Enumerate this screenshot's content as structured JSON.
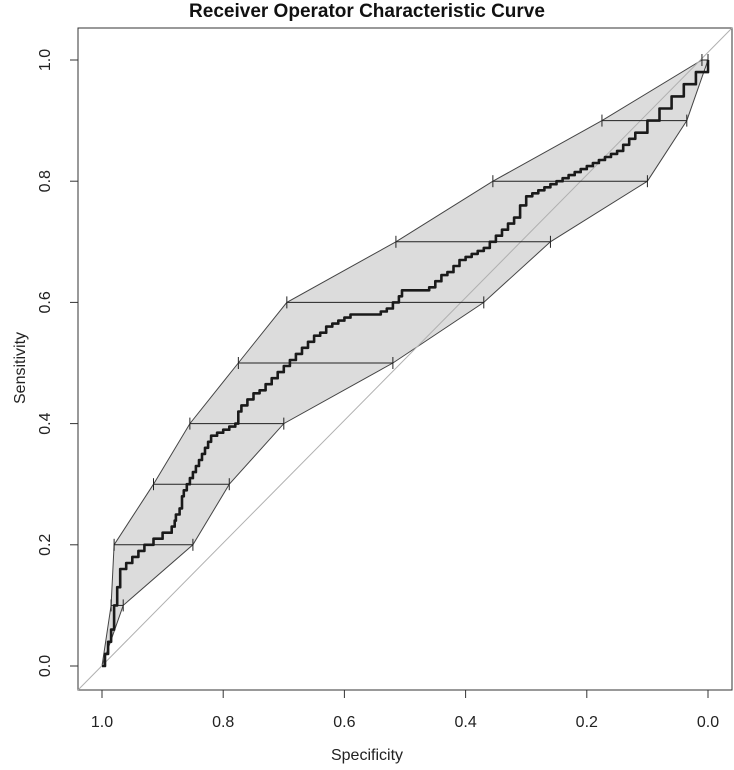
{
  "chart_data": {
    "type": "line",
    "title": "Receiver Operator Characteristic Curve",
    "xlabel": "Specificity",
    "ylabel": "Sensitivity",
    "xlim": [
      1.0,
      0.0
    ],
    "ylim": [
      0.0,
      1.0
    ],
    "x_reversed": true,
    "xticks": [
      "1.0",
      "0.8",
      "0.6",
      "0.4",
      "0.2",
      "0.0"
    ],
    "xtick_values": [
      1.0,
      0.8,
      0.6,
      0.4,
      0.2,
      0.0
    ],
    "yticks": [
      "0.0",
      "0.2",
      "0.4",
      "0.6",
      "0.8",
      "1.0"
    ],
    "ytick_values": [
      0.0,
      0.2,
      0.4,
      0.6,
      0.8,
      1.0
    ],
    "grid": false,
    "diagonal_reference": [
      [
        1.0,
        0.0
      ],
      [
        0.0,
        1.0
      ]
    ],
    "roc_curve": {
      "specificity": [
        1.0,
        0.995,
        0.99,
        0.985,
        0.98,
        0.975,
        0.97,
        0.96,
        0.95,
        0.945,
        0.94,
        0.93,
        0.925,
        0.92,
        0.915,
        0.9,
        0.895,
        0.89,
        0.885,
        0.88,
        0.878,
        0.872,
        0.868,
        0.865,
        0.86,
        0.855,
        0.85,
        0.845,
        0.84,
        0.835,
        0.83,
        0.825,
        0.82,
        0.81,
        0.8,
        0.79,
        0.78,
        0.775,
        0.775,
        0.77,
        0.76,
        0.75,
        0.74,
        0.73,
        0.72,
        0.71,
        0.7,
        0.69,
        0.68,
        0.67,
        0.66,
        0.65,
        0.64,
        0.63,
        0.62,
        0.61,
        0.6,
        0.59,
        0.58,
        0.57,
        0.56,
        0.55,
        0.54,
        0.53,
        0.52,
        0.51,
        0.505,
        0.5,
        0.49,
        0.48,
        0.47,
        0.46,
        0.45,
        0.44,
        0.43,
        0.42,
        0.41,
        0.4,
        0.39,
        0.38,
        0.37,
        0.36,
        0.35,
        0.34,
        0.33,
        0.32,
        0.31,
        0.3,
        0.29,
        0.28,
        0.27,
        0.26,
        0.25,
        0.24,
        0.23,
        0.22,
        0.21,
        0.2,
        0.19,
        0.18,
        0.17,
        0.16,
        0.15,
        0.14,
        0.13,
        0.12,
        0.1,
        0.08,
        0.06,
        0.04,
        0.02,
        0.0
      ],
      "sensitivity": [
        0.0,
        0.02,
        0.04,
        0.06,
        0.1,
        0.13,
        0.16,
        0.17,
        0.18,
        0.18,
        0.19,
        0.2,
        0.2,
        0.2,
        0.21,
        0.22,
        0.22,
        0.22,
        0.23,
        0.24,
        0.25,
        0.26,
        0.28,
        0.29,
        0.3,
        0.31,
        0.32,
        0.33,
        0.34,
        0.35,
        0.36,
        0.37,
        0.38,
        0.385,
        0.39,
        0.395,
        0.4,
        0.41,
        0.42,
        0.43,
        0.44,
        0.45,
        0.455,
        0.465,
        0.475,
        0.485,
        0.495,
        0.505,
        0.515,
        0.525,
        0.535,
        0.545,
        0.55,
        0.56,
        0.565,
        0.57,
        0.575,
        0.58,
        0.58,
        0.58,
        0.58,
        0.58,
        0.585,
        0.59,
        0.6,
        0.61,
        0.62,
        0.62,
        0.62,
        0.62,
        0.62,
        0.625,
        0.635,
        0.645,
        0.65,
        0.66,
        0.67,
        0.675,
        0.68,
        0.685,
        0.69,
        0.7,
        0.71,
        0.72,
        0.73,
        0.74,
        0.76,
        0.775,
        0.78,
        0.785,
        0.79,
        0.795,
        0.8,
        0.805,
        0.81,
        0.815,
        0.82,
        0.825,
        0.83,
        0.835,
        0.84,
        0.845,
        0.85,
        0.86,
        0.87,
        0.88,
        0.9,
        0.92,
        0.94,
        0.96,
        0.98,
        1.0
      ]
    },
    "confidence_band": {
      "upper": [
        [
          1.0,
          0.0
        ],
        [
          0.985,
          0.1
        ],
        [
          0.98,
          0.2
        ],
        [
          0.915,
          0.3
        ],
        [
          0.855,
          0.4
        ],
        [
          0.775,
          0.5
        ],
        [
          0.695,
          0.6
        ],
        [
          0.515,
          0.7
        ],
        [
          0.355,
          0.8
        ],
        [
          0.175,
          0.9
        ],
        [
          0.01,
          1.0
        ],
        [
          0.0,
          1.0
        ]
      ],
      "lower": [
        [
          0.0,
          1.0
        ],
        [
          0.035,
          0.9
        ],
        [
          0.1,
          0.8
        ],
        [
          0.26,
          0.7
        ],
        [
          0.37,
          0.6
        ],
        [
          0.52,
          0.5
        ],
        [
          0.7,
          0.4
        ],
        [
          0.79,
          0.3
        ],
        [
          0.85,
          0.2
        ],
        [
          0.965,
          0.1
        ],
        [
          1.0,
          0.0
        ]
      ]
    },
    "ci_bars": [
      {
        "sensitivity": 0.1,
        "spec_low": 0.965,
        "spec_high": 0.985
      },
      {
        "sensitivity": 0.2,
        "spec_low": 0.85,
        "spec_high": 0.98
      },
      {
        "sensitivity": 0.3,
        "spec_low": 0.79,
        "spec_high": 0.915
      },
      {
        "sensitivity": 0.4,
        "spec_low": 0.7,
        "spec_high": 0.855
      },
      {
        "sensitivity": 0.5,
        "spec_low": 0.52,
        "spec_high": 0.775
      },
      {
        "sensitivity": 0.6,
        "spec_low": 0.37,
        "spec_high": 0.695
      },
      {
        "sensitivity": 0.7,
        "spec_low": 0.26,
        "spec_high": 0.515
      },
      {
        "sensitivity": 0.8,
        "spec_low": 0.1,
        "spec_high": 0.355
      },
      {
        "sensitivity": 0.9,
        "spec_low": 0.035,
        "spec_high": 0.175
      },
      {
        "sensitivity": 1.0,
        "spec_low": 0.0,
        "spec_high": 0.01
      }
    ],
    "colors": {
      "band_fill": "#dcdcdc",
      "band_stroke": "#444444",
      "curve": "#1a1a1a",
      "diagonal": "#b0b0b0",
      "axis": "#333333"
    }
  }
}
